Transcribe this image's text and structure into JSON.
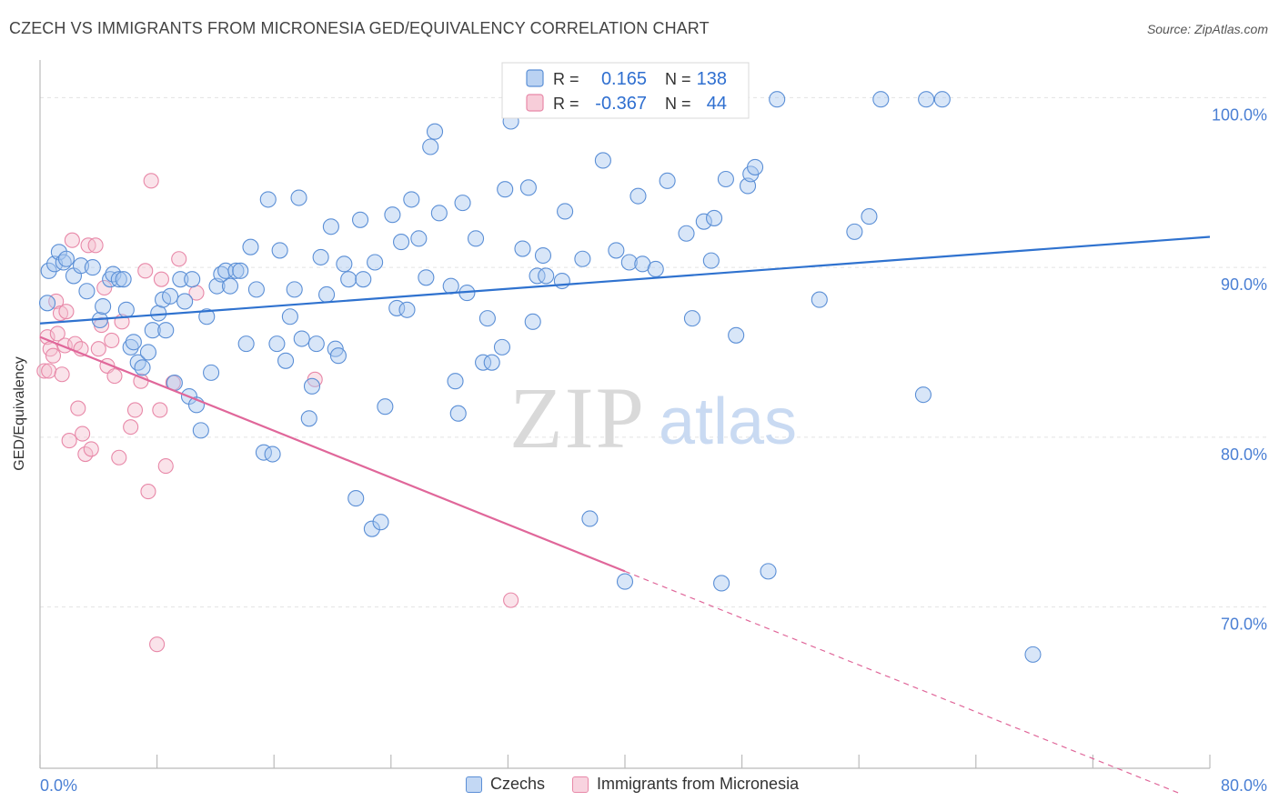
{
  "title": "CZECH VS IMMIGRANTS FROM MICRONESIA GED/EQUIVALENCY CORRELATION CHART",
  "source": "Source: ZipAtlas.com",
  "watermark": {
    "zip": "ZIP",
    "atlas": "atlas"
  },
  "colors": {
    "blue_fill": "#a9c7ef",
    "blue_stroke": "#5b8fd6",
    "blue_line": "#2f72cf",
    "pink_fill": "#f5c0d0",
    "pink_stroke": "#e888a8",
    "pink_line": "#e0679a",
    "tick_text": "#4a7fd4",
    "grid": "#e3e3e3"
  },
  "legend": {
    "rows": [
      {
        "r_label": "R =",
        "r_value": "0.165",
        "n_label": "N =",
        "n_value": "138"
      },
      {
        "r_label": "R =",
        "r_value": "-0.367",
        "n_label": "N =",
        "n_value": "44"
      }
    ]
  },
  "bottom_legend": {
    "czechs": "Czechs",
    "micronesia": "Immigrants from Micronesia"
  },
  "chart_data": {
    "type": "scatter",
    "title": "CZECH VS IMMIGRANTS FROM MICRONESIA GED/EQUIVALENCY CORRELATION CHART",
    "xlabel": "",
    "ylabel": "GED/Equivalency",
    "xlim": [
      0,
      80
    ],
    "ylim": [
      60.5,
      102
    ],
    "x_tick_labels": [
      "0.0%",
      "80.0%"
    ],
    "y_ticks": [
      70,
      80,
      90,
      100
    ],
    "y_tick_labels": [
      "70.0%",
      "80.0%",
      "90.0%",
      "100.0%"
    ],
    "grid": "horizontal dashed",
    "legend_position": "top-center",
    "series": [
      {
        "name": "Czechs",
        "color": "#a9c7ef",
        "trend": {
          "x": [
            0,
            80
          ],
          "y": [
            86.7,
            91.8
          ],
          "style": "solid"
        },
        "points": [
          [
            0.5,
            87.9
          ],
          [
            0.6,
            89.8
          ],
          [
            1.0,
            90.2
          ],
          [
            1.3,
            90.9
          ],
          [
            1.6,
            90.3
          ],
          [
            1.8,
            90.5
          ],
          [
            2.3,
            89.5
          ],
          [
            2.8,
            90.1
          ],
          [
            3.2,
            88.6
          ],
          [
            3.6,
            90.0
          ],
          [
            4.1,
            86.9
          ],
          [
            4.3,
            87.7
          ],
          [
            4.8,
            89.3
          ],
          [
            5.0,
            89.6
          ],
          [
            5.4,
            89.3
          ],
          [
            5.7,
            89.3
          ],
          [
            5.9,
            87.5
          ],
          [
            6.2,
            85.3
          ],
          [
            6.4,
            85.6
          ],
          [
            6.7,
            84.4
          ],
          [
            7.0,
            84.1
          ],
          [
            7.4,
            85.0
          ],
          [
            7.7,
            86.3
          ],
          [
            8.1,
            87.3
          ],
          [
            8.4,
            88.1
          ],
          [
            8.6,
            86.3
          ],
          [
            8.9,
            88.3
          ],
          [
            9.2,
            83.2
          ],
          [
            9.6,
            89.3
          ],
          [
            9.9,
            88.0
          ],
          [
            10.2,
            82.4
          ],
          [
            10.4,
            89.3
          ],
          [
            10.7,
            81.9
          ],
          [
            11.0,
            80.4
          ],
          [
            11.4,
            87.1
          ],
          [
            11.7,
            83.8
          ],
          [
            12.1,
            88.9
          ],
          [
            12.4,
            89.6
          ],
          [
            12.7,
            89.8
          ],
          [
            13.0,
            88.9
          ],
          [
            13.4,
            89.8
          ],
          [
            13.7,
            89.8
          ],
          [
            14.1,
            85.5
          ],
          [
            14.4,
            91.2
          ],
          [
            14.8,
            88.7
          ],
          [
            15.3,
            79.1
          ],
          [
            15.6,
            94.0
          ],
          [
            15.9,
            79.0
          ],
          [
            16.2,
            85.5
          ],
          [
            16.4,
            91.0
          ],
          [
            16.8,
            84.5
          ],
          [
            17.1,
            87.1
          ],
          [
            17.4,
            88.7
          ],
          [
            17.7,
            94.1
          ],
          [
            17.9,
            85.8
          ],
          [
            18.4,
            81.1
          ],
          [
            18.6,
            83.0
          ],
          [
            18.9,
            85.5
          ],
          [
            19.2,
            90.6
          ],
          [
            19.6,
            88.4
          ],
          [
            19.9,
            92.4
          ],
          [
            20.2,
            85.2
          ],
          [
            20.4,
            84.8
          ],
          [
            20.8,
            90.2
          ],
          [
            21.1,
            89.3
          ],
          [
            21.6,
            76.4
          ],
          [
            21.9,
            92.8
          ],
          [
            22.1,
            89.3
          ],
          [
            22.7,
            74.6
          ],
          [
            22.9,
            90.3
          ],
          [
            23.3,
            75.0
          ],
          [
            23.6,
            81.8
          ],
          [
            24.1,
            93.1
          ],
          [
            24.4,
            87.6
          ],
          [
            24.7,
            91.5
          ],
          [
            25.1,
            87.5
          ],
          [
            25.4,
            94.0
          ],
          [
            25.9,
            91.7
          ],
          [
            26.4,
            89.4
          ],
          [
            26.7,
            97.1
          ],
          [
            27.0,
            98.0
          ],
          [
            27.3,
            93.2
          ],
          [
            28.1,
            88.9
          ],
          [
            28.4,
            83.3
          ],
          [
            28.6,
            81.4
          ],
          [
            28.9,
            93.8
          ],
          [
            29.2,
            88.5
          ],
          [
            29.8,
            91.7
          ],
          [
            30.3,
            84.4
          ],
          [
            30.6,
            87.0
          ],
          [
            30.9,
            84.4
          ],
          [
            31.6,
            85.3
          ],
          [
            31.8,
            94.6
          ],
          [
            32.2,
            98.6
          ],
          [
            33.0,
            91.1
          ],
          [
            33.4,
            94.7
          ],
          [
            33.7,
            86.8
          ],
          [
            34.0,
            89.5
          ],
          [
            34.4,
            90.7
          ],
          [
            34.6,
            89.5
          ],
          [
            35.7,
            89.2
          ],
          [
            35.9,
            93.3
          ],
          [
            36.6,
            99.9
          ],
          [
            37.1,
            90.5
          ],
          [
            37.6,
            75.2
          ],
          [
            38.5,
            96.3
          ],
          [
            39.4,
            91.0
          ],
          [
            40.0,
            71.5
          ],
          [
            40.3,
            90.3
          ],
          [
            40.9,
            94.2
          ],
          [
            41.2,
            90.2
          ],
          [
            42.1,
            89.9
          ],
          [
            42.9,
            95.1
          ],
          [
            44.2,
            92.0
          ],
          [
            44.6,
            87.0
          ],
          [
            45.4,
            92.7
          ],
          [
            45.9,
            90.4
          ],
          [
            46.1,
            92.9
          ],
          [
            46.6,
            71.4
          ],
          [
            46.9,
            95.2
          ],
          [
            47.6,
            86.0
          ],
          [
            48.4,
            94.8
          ],
          [
            48.6,
            95.5
          ],
          [
            48.9,
            95.9
          ],
          [
            49.8,
            72.1
          ],
          [
            50.4,
            99.9
          ],
          [
            53.3,
            88.1
          ],
          [
            55.7,
            92.1
          ],
          [
            56.7,
            93.0
          ],
          [
            57.5,
            99.9
          ],
          [
            60.4,
            82.5
          ],
          [
            60.6,
            99.9
          ],
          [
            61.7,
            99.9
          ],
          [
            67.9,
            67.2
          ]
        ]
      },
      {
        "name": "Immigrants from Micronesia",
        "color": "#f5c0d0",
        "trend": {
          "x": [
            0,
            40
          ],
          "y": [
            85.9,
            72.1
          ],
          "style": "solid",
          "dashed_extension": {
            "x": [
              40,
              78
            ],
            "y": [
              72.1,
              59.0
            ]
          }
        },
        "points": [
          [
            0.3,
            83.9
          ],
          [
            0.5,
            85.9
          ],
          [
            0.6,
            83.9
          ],
          [
            0.7,
            85.2
          ],
          [
            0.9,
            84.8
          ],
          [
            1.1,
            88.0
          ],
          [
            1.2,
            86.1
          ],
          [
            1.4,
            87.3
          ],
          [
            1.5,
            83.7
          ],
          [
            1.7,
            85.4
          ],
          [
            1.8,
            87.4
          ],
          [
            2.0,
            79.8
          ],
          [
            2.2,
            91.6
          ],
          [
            2.4,
            85.5
          ],
          [
            2.6,
            81.7
          ],
          [
            2.8,
            85.2
          ],
          [
            2.9,
            80.2
          ],
          [
            3.1,
            79.0
          ],
          [
            3.3,
            91.3
          ],
          [
            3.5,
            79.3
          ],
          [
            3.8,
            91.3
          ],
          [
            4.0,
            85.2
          ],
          [
            4.2,
            86.6
          ],
          [
            4.4,
            88.8
          ],
          [
            4.6,
            84.2
          ],
          [
            4.9,
            85.7
          ],
          [
            5.1,
            83.6
          ],
          [
            5.4,
            78.8
          ],
          [
            5.6,
            86.8
          ],
          [
            6.2,
            80.6
          ],
          [
            6.5,
            81.6
          ],
          [
            6.9,
            83.3
          ],
          [
            7.2,
            89.8
          ],
          [
            7.4,
            76.8
          ],
          [
            7.6,
            95.1
          ],
          [
            8.0,
            67.8
          ],
          [
            8.2,
            81.6
          ],
          [
            8.3,
            89.3
          ],
          [
            8.6,
            78.3
          ],
          [
            9.1,
            83.2
          ],
          [
            9.5,
            90.5
          ],
          [
            10.7,
            88.5
          ],
          [
            18.8,
            83.4
          ],
          [
            32.2,
            70.4
          ]
        ]
      }
    ]
  }
}
